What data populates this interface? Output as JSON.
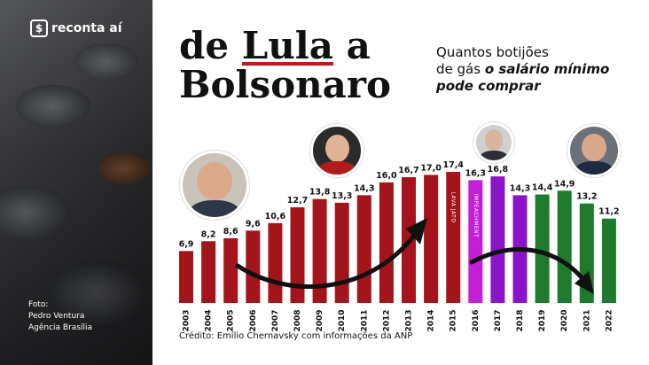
{
  "brand": {
    "icon": "$",
    "name": "reconta aí"
  },
  "photo_credit": {
    "line1": "Foto:",
    "line2": "Pedro Ventura",
    "line3": "Agência Brasília"
  },
  "title": {
    "part1": "de ",
    "part2": "Lula",
    "part3": " a",
    "line2": "Bolsonaro"
  },
  "subtitle": {
    "line1": "Quantos botijões",
    "line2_plain": "de gás ",
    "line2_bold": "o salário mínimo",
    "line3_bold": "pode comprar"
  },
  "footer": "Crédito: Emílio Chernavsky com informações da ANP",
  "colors": {
    "lula_dilma": "#a3151b",
    "temer": "#8a14c8",
    "temer_light": "#c21fd6",
    "bolsonaro": "#1e7a2c",
    "accent": "#c0181f"
  },
  "chart_data": {
    "type": "bar",
    "categories": [
      "2003",
      "2004",
      "2005",
      "2006",
      "2007",
      "2008",
      "2009",
      "2010",
      "2011",
      "2012",
      "2013",
      "2014",
      "2015",
      "2016",
      "2017",
      "2018",
      "2019",
      "2020",
      "2021",
      "2022"
    ],
    "values": [
      6.9,
      8.2,
      8.6,
      9.6,
      10.6,
      12.7,
      13.8,
      13.3,
      14.3,
      16.0,
      16.7,
      17.0,
      17.4,
      16.3,
      16.8,
      14.3,
      14.4,
      14.9,
      13.2,
      11.2
    ],
    "value_labels": [
      "6,9",
      "8,2",
      "8,6",
      "9,6",
      "10,6",
      "12,7",
      "13,8",
      "13,3",
      "14,3",
      "16,0",
      "16,7",
      "17,0",
      "17,4",
      "16,3",
      "16,8",
      "14,3",
      "14,4",
      "14,9",
      "13,2",
      "11,2"
    ],
    "bar_colors": [
      "#a3151b",
      "#a3151b",
      "#a3151b",
      "#a3151b",
      "#a3151b",
      "#a3151b",
      "#a3151b",
      "#a3151b",
      "#a3151b",
      "#a3151b",
      "#a3151b",
      "#a3151b",
      "#a3151b",
      "#c21fd6",
      "#8a14c8",
      "#8a14c8",
      "#1e7a2c",
      "#1e7a2c",
      "#1e7a2c",
      "#1e7a2c"
    ],
    "annotations": [
      {
        "category": "2015",
        "text": "LAVA JATO"
      },
      {
        "category": "2016",
        "text": "IMPEACHMENT"
      }
    ],
    "ylim": [
      0,
      17.4
    ],
    "title": "",
    "xlabel": "",
    "ylabel": ""
  }
}
